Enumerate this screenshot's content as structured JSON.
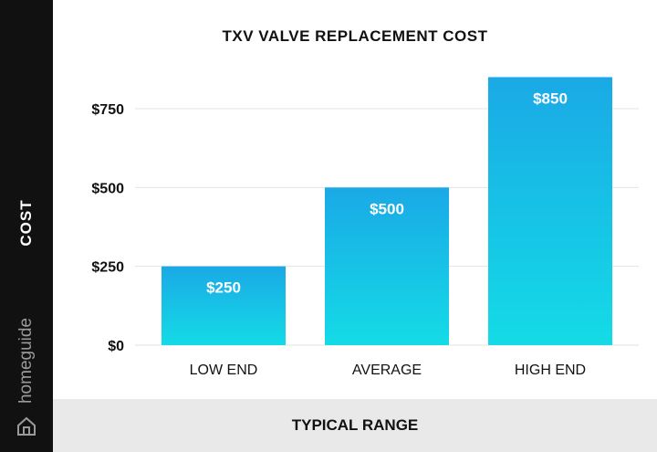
{
  "brand": {
    "name": "homeguide",
    "icon": "house-icon"
  },
  "chart_data": {
    "type": "bar",
    "title": "TXV VALVE REPLACEMENT COST",
    "xlabel": "TYPICAL RANGE",
    "ylabel": "COST",
    "categories": [
      "LOW END",
      "AVERAGE",
      "HIGH END"
    ],
    "values": [
      250,
      500,
      850
    ],
    "data_labels": [
      "$250",
      "$500",
      "$850"
    ],
    "yticks": [
      0,
      250,
      500,
      750
    ],
    "ytick_labels": [
      "$0",
      "$250",
      "$500",
      "$750"
    ],
    "ylim": [
      0,
      850
    ],
    "grid": true,
    "legend": "none",
    "colors": {
      "bar_top": "#1aa9e6",
      "bar_bottom": "#14dbe6",
      "grid": "#e3e3e3",
      "sidebar": "#111111",
      "footer": "#e9e9e9"
    }
  }
}
